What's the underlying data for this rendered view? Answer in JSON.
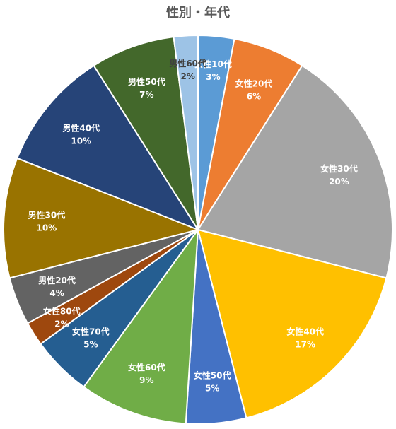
{
  "chart_data": {
    "type": "pie",
    "title": "性別・年代",
    "slices": [
      {
        "label": "女性10代",
        "value": 3,
        "pct_label": "3%",
        "color": "#5B9BD5",
        "text_color": "#ffffff"
      },
      {
        "label": "女性20代",
        "value": 6,
        "pct_label": "6%",
        "color": "#ED7D31",
        "text_color": "#ffffff"
      },
      {
        "label": "女性30代",
        "value": 20,
        "pct_label": "20%",
        "color": "#A5A5A5",
        "text_color": "#ffffff"
      },
      {
        "label": "女性40代",
        "value": 17,
        "pct_label": "17%",
        "color": "#FFC000",
        "text_color": "#ffffff"
      },
      {
        "label": "女性50代",
        "value": 5,
        "pct_label": "5%",
        "color": "#4472C4",
        "text_color": "#ffffff"
      },
      {
        "label": "女性60代",
        "value": 9,
        "pct_label": "9%",
        "color": "#70AD47",
        "text_color": "#ffffff"
      },
      {
        "label": "女性70代",
        "value": 5,
        "pct_label": "5%",
        "color": "#255E91",
        "text_color": "#ffffff"
      },
      {
        "label": "女性80代",
        "value": 2,
        "pct_label": "2%",
        "color": "#9E480E",
        "text_color": "#ffffff"
      },
      {
        "label": "男性20代",
        "value": 4,
        "pct_label": "4%",
        "color": "#636363",
        "text_color": "#ffffff"
      },
      {
        "label": "男性30代",
        "value": 10,
        "pct_label": "10%",
        "color": "#997300",
        "text_color": "#ffffff"
      },
      {
        "label": "男性40代",
        "value": 10,
        "pct_label": "10%",
        "color": "#264478",
        "text_color": "#ffffff"
      },
      {
        "label": "男性50代",
        "value": 7,
        "pct_label": "7%",
        "color": "#43682B",
        "text_color": "#ffffff"
      },
      {
        "label": "男性60代",
        "value": 2,
        "pct_label": "2%",
        "color": "#9DC3E6",
        "text_color": "#404040"
      }
    ],
    "start_angle": "12 o'clock",
    "direction": "clockwise",
    "legend": "none"
  }
}
